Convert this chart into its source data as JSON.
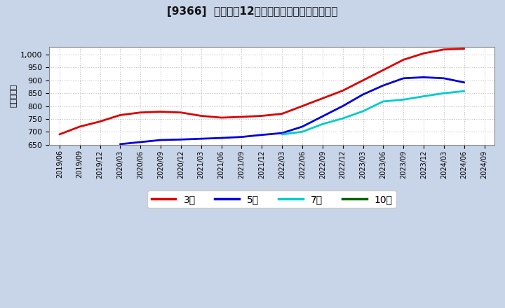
{
  "title": "[9366]  経常利益12か月移動合計の平均値の推移",
  "ylabel": "（百万円）",
  "ylim": [
    650,
    1030
  ],
  "yticks": [
    650,
    700,
    750,
    800,
    850,
    900,
    950,
    1000
  ],
  "outer_bg": "#c8d4e8",
  "plot_bg": "#ffffff",
  "grid_color": "#aaaaaa",
  "series": {
    "3年": {
      "color": "#dd0000",
      "data": [
        [
          "2019/06",
          690
        ],
        [
          "2019/09",
          720
        ],
        [
          "2019/12",
          740
        ],
        [
          "2020/03",
          765
        ],
        [
          "2020/06",
          775
        ],
        [
          "2020/09",
          778
        ],
        [
          "2020/12",
          775
        ],
        [
          "2021/03",
          762
        ],
        [
          "2021/06",
          755
        ],
        [
          "2021/09",
          758
        ],
        [
          "2021/12",
          762
        ],
        [
          "2022/03",
          770
        ],
        [
          "2022/06",
          800
        ],
        [
          "2022/09",
          830
        ],
        [
          "2022/12",
          860
        ],
        [
          "2023/03",
          900
        ],
        [
          "2023/06",
          940
        ],
        [
          "2023/09",
          980
        ],
        [
          "2023/12",
          1005
        ],
        [
          "2024/03",
          1020
        ],
        [
          "2024/06",
          1023
        ]
      ]
    },
    "5年": {
      "color": "#0000dd",
      "data": [
        [
          "2020/03",
          652
        ],
        [
          "2020/06",
          660
        ],
        [
          "2020/09",
          668
        ],
        [
          "2020/12",
          670
        ],
        [
          "2021/03",
          673
        ],
        [
          "2021/06",
          676
        ],
        [
          "2021/09",
          680
        ],
        [
          "2021/12",
          688
        ],
        [
          "2022/03",
          695
        ],
        [
          "2022/06",
          720
        ],
        [
          "2022/09",
          760
        ],
        [
          "2022/12",
          800
        ],
        [
          "2023/03",
          845
        ],
        [
          "2023/06",
          880
        ],
        [
          "2023/09",
          908
        ],
        [
          "2023/12",
          912
        ],
        [
          "2024/03",
          908
        ],
        [
          "2024/06",
          892
        ]
      ]
    },
    "7年": {
      "color": "#00cccc",
      "data": [
        [
          "2022/03",
          690
        ],
        [
          "2022/06",
          700
        ],
        [
          "2022/09",
          730
        ],
        [
          "2022/12",
          752
        ],
        [
          "2023/03",
          780
        ],
        [
          "2023/06",
          818
        ],
        [
          "2023/09",
          825
        ],
        [
          "2023/12",
          838
        ],
        [
          "2024/03",
          850
        ],
        [
          "2024/06",
          858
        ]
      ]
    },
    "10年": {
      "color": "#006600",
      "data": []
    }
  },
  "xtick_labels": [
    "2019/06",
    "2019/09",
    "2019/12",
    "2020/03",
    "2020/06",
    "2020/09",
    "2020/12",
    "2021/03",
    "2021/06",
    "2021/09",
    "2021/12",
    "2022/03",
    "2022/06",
    "2022/09",
    "2022/12",
    "2023/03",
    "2023/06",
    "2023/09",
    "2023/12",
    "2024/03",
    "2024/06",
    "2024/09"
  ],
  "legend_labels": [
    "3年",
    "5年",
    "7年",
    "10年"
  ],
  "legend_colors": [
    "#dd0000",
    "#0000dd",
    "#00cccc",
    "#006600"
  ]
}
